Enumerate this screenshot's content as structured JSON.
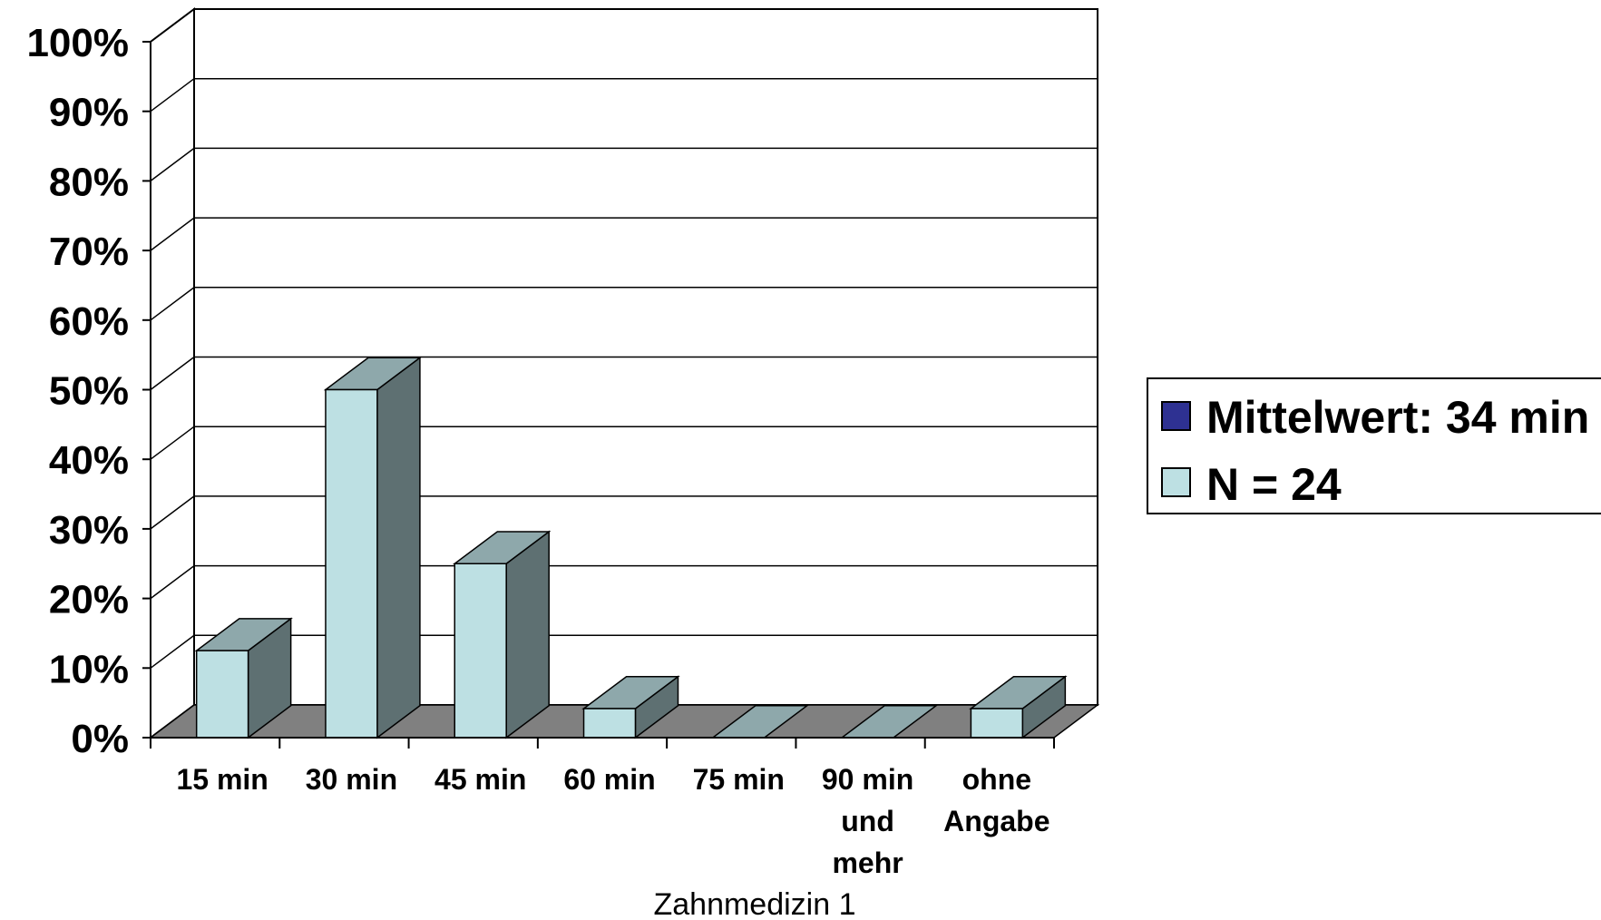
{
  "chart_data": {
    "type": "bar",
    "style": "3d-column",
    "categories": [
      "15 min",
      "30 min",
      "45 min",
      "60 min",
      "75 min",
      "90 min und mehr",
      "ohne Angabe"
    ],
    "category_lines": [
      [
        "15 min"
      ],
      [
        "30 min"
      ],
      [
        "45 min"
      ],
      [
        "60 min"
      ],
      [
        "75 min"
      ],
      [
        "90 min",
        "und",
        "mehr"
      ],
      [
        "ohne",
        "Angabe"
      ]
    ],
    "series": [
      {
        "name": "N = 24",
        "values": [
          12.5,
          50,
          25,
          4.17,
          0,
          0,
          4.17
        ]
      }
    ],
    "legend": [
      "Mittelwert: 34 min",
      "N = 24"
    ],
    "legend_position": "right",
    "xlabel": "Zahnmedizin 1",
    "ylabel": "",
    "ylim": [
      0,
      100
    ],
    "yticks": [
      "0%",
      "10%",
      "20%",
      "30%",
      "40%",
      "50%",
      "60%",
      "70%",
      "80%",
      "90%",
      "100%"
    ],
    "grid": true
  },
  "colors": {
    "bar_front": "#bde0e3",
    "bar_top": "#8ea8ab",
    "bar_side": "#5e7072",
    "floor": "#808080",
    "legend_mittelwert": "#2e3192",
    "legend_n": "#bde0e3"
  }
}
